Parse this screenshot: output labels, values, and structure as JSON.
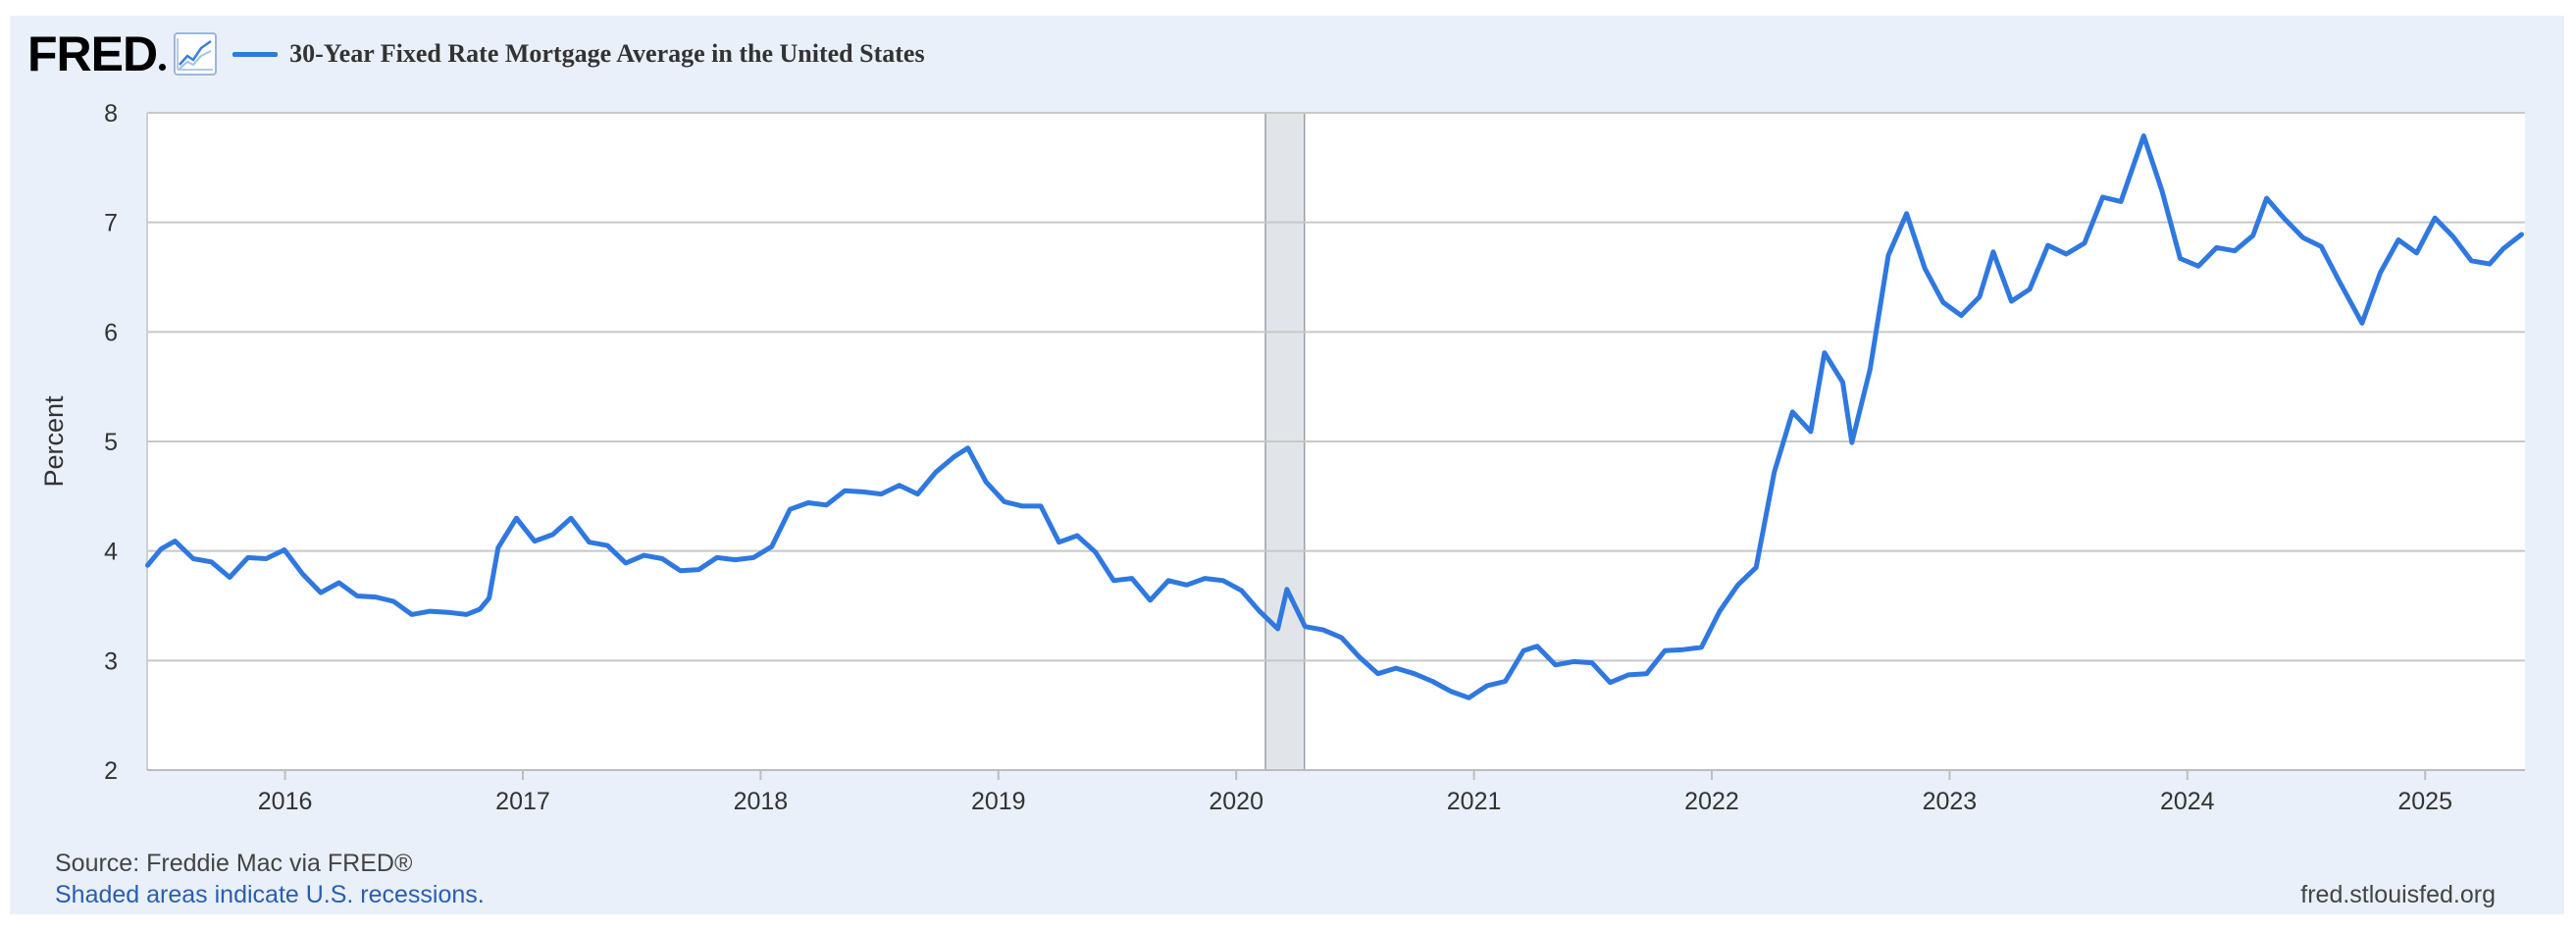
{
  "brand": {
    "name": "FRED",
    "icon": "trend-line-chart-icon"
  },
  "legend": {
    "label": "30-Year Fixed Rate Mortgage Average in the United States",
    "color": "#2f78e0"
  },
  "footer": {
    "source": "Source: Freddie Mac via FRED®",
    "recession_note": "Shaded areas indicate U.S. recessions.",
    "url": "fred.stlouisfed.org"
  },
  "colors": {
    "background": "#e9f0fa",
    "plot_background": "#ffffff",
    "grid": "#c8c8c8",
    "line": "#2f78e0",
    "recession_shade": "#e1e5ea",
    "recession_border": "#9aa0a6"
  },
  "chart_data": {
    "type": "line",
    "title": "30-Year Fixed Rate Mortgage Average in the United States",
    "xlabel": "",
    "ylabel": "Percent",
    "xlim": [
      2015.42,
      2025.42
    ],
    "ylim": [
      2,
      8
    ],
    "grid": true,
    "legend_position": "top-left",
    "x_ticks": [
      "2016",
      "2017",
      "2018",
      "2019",
      "2020",
      "2021",
      "2022",
      "2023",
      "2024",
      "2025"
    ],
    "y_ticks": [
      "2",
      "3",
      "4",
      "5",
      "6",
      "7",
      "8"
    ],
    "recessions": [
      {
        "start": "2020-02",
        "end": "2020-04"
      }
    ],
    "series": [
      {
        "name": "30-Year Fixed Rate Mortgage Average in the United States",
        "points": [
          [
            "2015-06-04",
            3.87
          ],
          [
            "2015-06-25",
            4.02
          ],
          [
            "2015-07-16",
            4.09
          ],
          [
            "2015-08-13",
            3.93
          ],
          [
            "2015-09-10",
            3.9
          ],
          [
            "2015-10-08",
            3.76
          ],
          [
            "2015-11-05",
            3.94
          ],
          [
            "2015-12-03",
            3.93
          ],
          [
            "2015-12-31",
            4.01
          ],
          [
            "2016-01-28",
            3.79
          ],
          [
            "2016-02-25",
            3.62
          ],
          [
            "2016-03-24",
            3.71
          ],
          [
            "2016-04-21",
            3.59
          ],
          [
            "2016-05-19",
            3.58
          ],
          [
            "2016-06-16",
            3.54
          ],
          [
            "2016-07-14",
            3.42
          ],
          [
            "2016-08-11",
            3.45
          ],
          [
            "2016-09-08",
            3.44
          ],
          [
            "2016-10-06",
            3.42
          ],
          [
            "2016-10-27",
            3.47
          ],
          [
            "2016-11-10",
            3.57
          ],
          [
            "2016-11-24",
            4.03
          ],
          [
            "2016-12-22",
            4.3
          ],
          [
            "2017-01-19",
            4.09
          ],
          [
            "2017-02-16",
            4.15
          ],
          [
            "2017-03-16",
            4.3
          ],
          [
            "2017-04-13",
            4.08
          ],
          [
            "2017-05-11",
            4.05
          ],
          [
            "2017-06-08",
            3.89
          ],
          [
            "2017-07-06",
            3.96
          ],
          [
            "2017-08-03",
            3.93
          ],
          [
            "2017-08-31",
            3.82
          ],
          [
            "2017-09-28",
            3.83
          ],
          [
            "2017-10-26",
            3.94
          ],
          [
            "2017-11-23",
            3.92
          ],
          [
            "2017-12-21",
            3.94
          ],
          [
            "2018-01-18",
            4.04
          ],
          [
            "2018-02-15",
            4.38
          ],
          [
            "2018-03-15",
            4.44
          ],
          [
            "2018-04-12",
            4.42
          ],
          [
            "2018-05-10",
            4.55
          ],
          [
            "2018-06-07",
            4.54
          ],
          [
            "2018-07-05",
            4.52
          ],
          [
            "2018-08-02",
            4.6
          ],
          [
            "2018-08-30",
            4.52
          ],
          [
            "2018-09-27",
            4.72
          ],
          [
            "2018-10-25",
            4.86
          ],
          [
            "2018-11-15",
            4.94
          ],
          [
            "2018-12-13",
            4.63
          ],
          [
            "2019-01-10",
            4.45
          ],
          [
            "2019-02-07",
            4.41
          ],
          [
            "2019-03-07",
            4.41
          ],
          [
            "2019-04-04",
            4.08
          ],
          [
            "2019-05-02",
            4.14
          ],
          [
            "2019-05-30",
            3.99
          ],
          [
            "2019-06-27",
            3.73
          ],
          [
            "2019-07-25",
            3.75
          ],
          [
            "2019-08-22",
            3.55
          ],
          [
            "2019-09-19",
            3.73
          ],
          [
            "2019-10-17",
            3.69
          ],
          [
            "2019-11-14",
            3.75
          ],
          [
            "2019-12-12",
            3.73
          ],
          [
            "2020-01-09",
            3.64
          ],
          [
            "2020-02-06",
            3.45
          ],
          [
            "2020-03-05",
            3.29
          ],
          [
            "2020-03-19",
            3.65
          ],
          [
            "2020-04-16",
            3.31
          ],
          [
            "2020-05-14",
            3.28
          ],
          [
            "2020-06-11",
            3.21
          ],
          [
            "2020-07-09",
            3.03
          ],
          [
            "2020-08-06",
            2.88
          ],
          [
            "2020-09-03",
            2.93
          ],
          [
            "2020-10-01",
            2.88
          ],
          [
            "2020-10-29",
            2.81
          ],
          [
            "2020-11-26",
            2.72
          ],
          [
            "2020-12-24",
            2.66
          ],
          [
            "2021-01-21",
            2.77
          ],
          [
            "2021-02-18",
            2.81
          ],
          [
            "2021-03-18",
            3.09
          ],
          [
            "2021-04-08",
            3.13
          ],
          [
            "2021-05-06",
            2.96
          ],
          [
            "2021-06-03",
            2.99
          ],
          [
            "2021-07-01",
            2.98
          ],
          [
            "2021-07-29",
            2.8
          ],
          [
            "2021-08-26",
            2.87
          ],
          [
            "2021-09-23",
            2.88
          ],
          [
            "2021-10-21",
            3.09
          ],
          [
            "2021-11-18",
            3.1
          ],
          [
            "2021-12-16",
            3.12
          ],
          [
            "2022-01-13",
            3.45
          ],
          [
            "2022-02-10",
            3.69
          ],
          [
            "2022-03-10",
            3.85
          ],
          [
            "2022-04-07",
            4.72
          ],
          [
            "2022-05-05",
            5.27
          ],
          [
            "2022-06-02",
            5.09
          ],
          [
            "2022-06-23",
            5.81
          ],
          [
            "2022-07-21",
            5.54
          ],
          [
            "2022-08-04",
            4.99
          ],
          [
            "2022-09-01",
            5.66
          ],
          [
            "2022-09-29",
            6.7
          ],
          [
            "2022-10-27",
            7.08
          ],
          [
            "2022-11-24",
            6.58
          ],
          [
            "2022-12-22",
            6.27
          ],
          [
            "2023-01-19",
            6.15
          ],
          [
            "2023-02-16",
            6.32
          ],
          [
            "2023-03-09",
            6.73
          ],
          [
            "2023-04-06",
            6.28
          ],
          [
            "2023-05-04",
            6.39
          ],
          [
            "2023-06-01",
            6.79
          ],
          [
            "2023-06-29",
            6.71
          ],
          [
            "2023-07-27",
            6.81
          ],
          [
            "2023-08-24",
            7.23
          ],
          [
            "2023-09-21",
            7.19
          ],
          [
            "2023-10-26",
            7.79
          ],
          [
            "2023-11-23",
            7.29
          ],
          [
            "2023-12-21",
            6.67
          ],
          [
            "2024-01-18",
            6.6
          ],
          [
            "2024-02-15",
            6.77
          ],
          [
            "2024-03-14",
            6.74
          ],
          [
            "2024-04-11",
            6.88
          ],
          [
            "2024-05-02",
            7.22
          ],
          [
            "2024-05-30",
            7.03
          ],
          [
            "2024-06-27",
            6.86
          ],
          [
            "2024-07-25",
            6.78
          ],
          [
            "2024-08-22",
            6.46
          ],
          [
            "2024-09-26",
            6.08
          ],
          [
            "2024-10-24",
            6.54
          ],
          [
            "2024-11-21",
            6.84
          ],
          [
            "2024-12-19",
            6.72
          ],
          [
            "2025-01-16",
            7.04
          ],
          [
            "2025-02-13",
            6.87
          ],
          [
            "2025-03-13",
            6.65
          ],
          [
            "2025-04-10",
            6.62
          ],
          [
            "2025-05-01",
            6.76
          ],
          [
            "2025-05-29",
            6.89
          ]
        ]
      }
    ]
  }
}
